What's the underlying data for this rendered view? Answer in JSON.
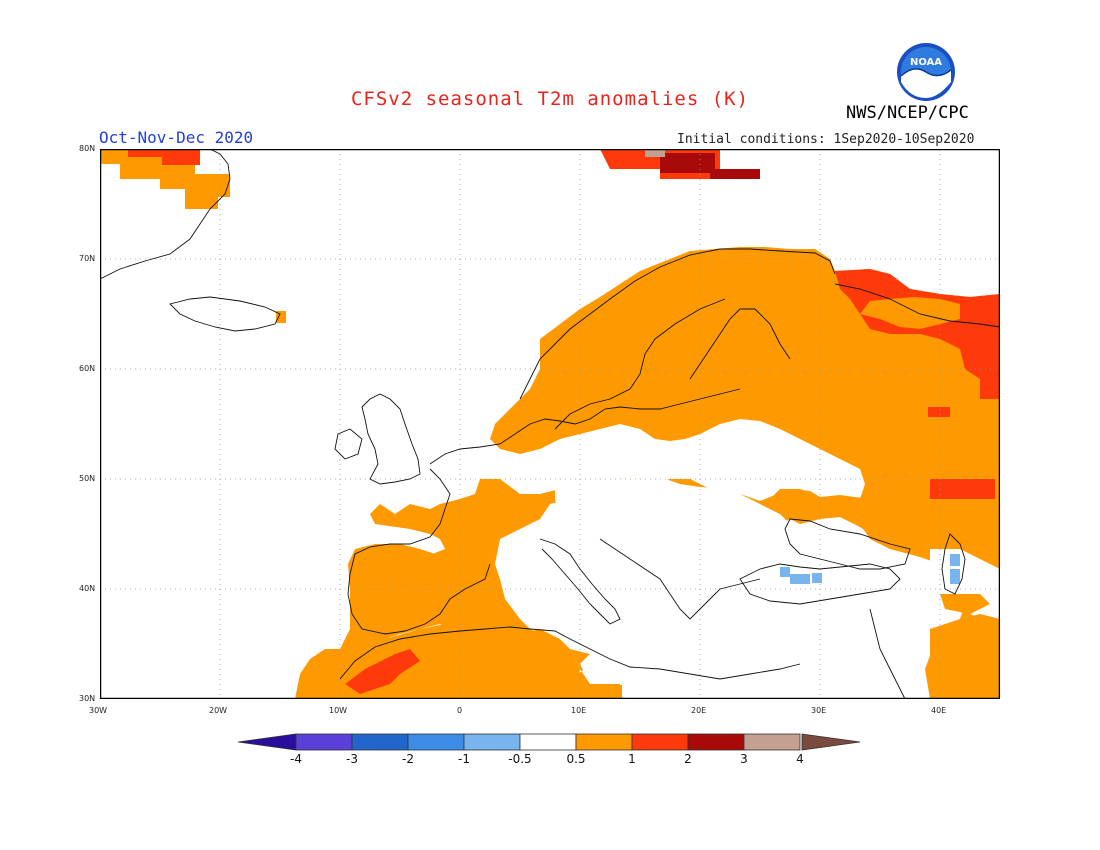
{
  "header": {
    "title": "CFSv2 seasonal T2m anomalies (K)",
    "season": "Oct-Nov-Dec 2020",
    "agency": "NWS/NCEP/CPC",
    "initial_conditions": "Initial conditions: 1Sep2020-10Sep2020",
    "logo_text": "NOAA"
  },
  "map": {
    "lon_labels": [
      "30W",
      "20W",
      "10W",
      "0",
      "10E",
      "20E",
      "30E",
      "40E"
    ],
    "lat_labels": [
      "80N",
      "70N",
      "60N",
      "50N",
      "40N",
      "30N"
    ]
  },
  "colorbar": {
    "labels": [
      "-4",
      "-3",
      "-2",
      "-1",
      "-0.5",
      "0.5",
      "1",
      "2",
      "3",
      "4"
    ],
    "colors": [
      "#2a0d9c",
      "#5a3fd8",
      "#2266cc",
      "#3c8ce8",
      "#78b4ee",
      "#ffffff",
      "#ff9900",
      "#ff3a0a",
      "#a80a0a",
      "#c4a091",
      "#7a4a3c"
    ]
  }
}
